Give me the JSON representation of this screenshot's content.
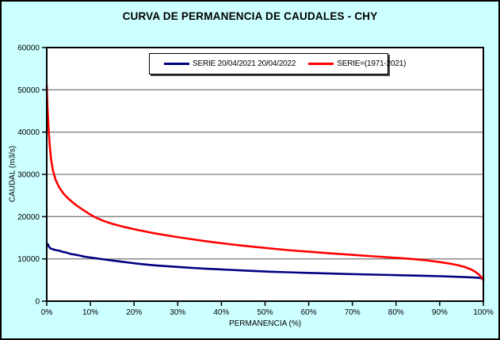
{
  "chart": {
    "title": "CURVA DE PERMANENCIA DE CAUDALES - CHY",
    "background_color": "#CCFFFF",
    "plot_background": "#FFFFFF",
    "gridline_color": "#808080",
    "axis_color": "#000000"
  },
  "chart_data": {
    "type": "line",
    "title": "CURVA DE PERMANENCIA DE CAUDALES - CHY",
    "xlabel": "PERMANENCIA (%)",
    "ylabel": "CAUDAL (m3/s)",
    "xlim": [
      0,
      100
    ],
    "ylim": [
      0,
      60000
    ],
    "x_tick_values": [
      0,
      10,
      20,
      30,
      40,
      50,
      60,
      70,
      80,
      90,
      100
    ],
    "x_tick_labels": [
      "0%",
      "10%",
      "20%",
      "30%",
      "40%",
      "50%",
      "60%",
      "70%",
      "80%",
      "90%",
      "100%"
    ],
    "y_tick_values": [
      0,
      10000,
      20000,
      30000,
      40000,
      50000,
      60000
    ],
    "y_tick_labels": [
      "0",
      "10000",
      "20000",
      "30000",
      "40000",
      "50000",
      "60000"
    ],
    "grid": "horizontal-only",
    "legend_position": "top-center",
    "series": [
      {
        "name": "SERIE 20/04/2021 20/04/2022",
        "color": "#000080",
        "points": [
          [
            0,
            13600
          ],
          [
            0.3,
            13400
          ],
          [
            0.5,
            12900
          ],
          [
            0.8,
            12500
          ],
          [
            1.2,
            12350
          ],
          [
            2,
            12100
          ],
          [
            3,
            11900
          ],
          [
            3.5,
            11700
          ],
          [
            4.5,
            11500
          ],
          [
            5.5,
            11150
          ],
          [
            6.5,
            11000
          ],
          [
            7.5,
            10800
          ],
          [
            8.5,
            10550
          ],
          [
            9.5,
            10400
          ],
          [
            10.5,
            10250
          ],
          [
            11.5,
            10100
          ],
          [
            12.5,
            9950
          ],
          [
            14,
            9750
          ],
          [
            15.5,
            9550
          ],
          [
            17,
            9350
          ],
          [
            19,
            9100
          ],
          [
            21,
            8850
          ],
          [
            23,
            8650
          ],
          [
            25,
            8450
          ],
          [
            27,
            8300
          ],
          [
            30,
            8100
          ],
          [
            33,
            7900
          ],
          [
            36,
            7700
          ],
          [
            39,
            7550
          ],
          [
            42,
            7400
          ],
          [
            45,
            7250
          ],
          [
            48,
            7100
          ],
          [
            51,
            6980
          ],
          [
            55,
            6850
          ],
          [
            59,
            6720
          ],
          [
            63,
            6600
          ],
          [
            67,
            6480
          ],
          [
            71,
            6380
          ],
          [
            75,
            6280
          ],
          [
            79,
            6180
          ],
          [
            83,
            6080
          ],
          [
            87,
            5980
          ],
          [
            90,
            5900
          ],
          [
            93,
            5800
          ],
          [
            95,
            5730
          ],
          [
            97,
            5650
          ],
          [
            98.5,
            5570
          ],
          [
            100,
            5380
          ]
        ]
      },
      {
        "name": "SERIE=(1971-2021)",
        "color": "#FF0000",
        "points": [
          [
            0,
            51000
          ],
          [
            0.15,
            46500
          ],
          [
            0.3,
            43000
          ],
          [
            0.5,
            39500
          ],
          [
            0.7,
            36500
          ],
          [
            1.0,
            33500
          ],
          [
            1.4,
            31000
          ],
          [
            2.0,
            28800
          ],
          [
            2.8,
            27000
          ],
          [
            3.8,
            25500
          ],
          [
            5.0,
            24200
          ],
          [
            6.5,
            22900
          ],
          [
            8.0,
            21800
          ],
          [
            9.5,
            20800
          ],
          [
            11,
            19900
          ],
          [
            13,
            19000
          ],
          [
            15,
            18300
          ],
          [
            18,
            17500
          ],
          [
            21,
            16800
          ],
          [
            25,
            16000
          ],
          [
            29,
            15300
          ],
          [
            33,
            14700
          ],
          [
            37,
            14100
          ],
          [
            41,
            13600
          ],
          [
            45,
            13100
          ],
          [
            50,
            12600
          ],
          [
            55,
            12100
          ],
          [
            60,
            11700
          ],
          [
            65,
            11300
          ],
          [
            70,
            10950
          ],
          [
            75,
            10600
          ],
          [
            80,
            10250
          ],
          [
            84,
            9950
          ],
          [
            87,
            9650
          ],
          [
            90,
            9250
          ],
          [
            92,
            8950
          ],
          [
            94,
            8550
          ],
          [
            95.5,
            8150
          ],
          [
            97,
            7600
          ],
          [
            98,
            7050
          ],
          [
            99,
            6300
          ],
          [
            99.6,
            5600
          ],
          [
            100,
            4900
          ]
        ]
      }
    ]
  }
}
